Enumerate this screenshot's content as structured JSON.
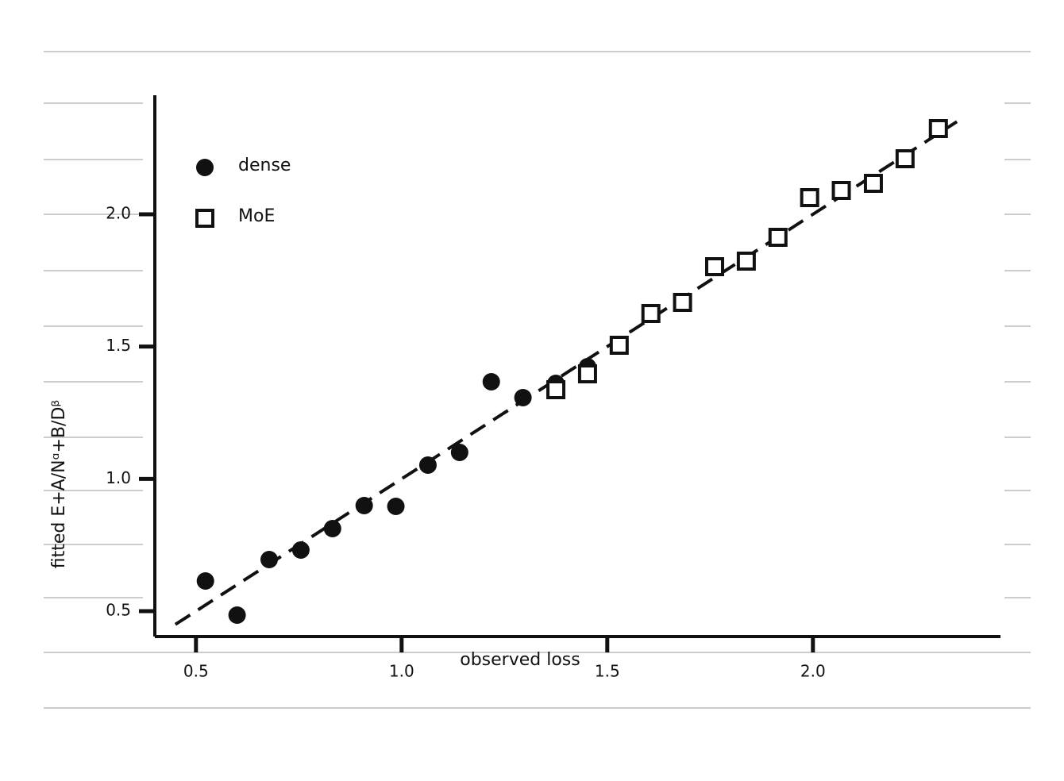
{
  "chart_data": {
    "type": "scatter",
    "xlabel": "observed loss",
    "ylabel": "fitted  E+A/Nᵅ+B/Dᵝ",
    "xlim": [
      0.4,
      2.456
    ],
    "ylim": [
      0.404,
      2.45
    ],
    "xticks": [
      0.5,
      {
        "value": 1.0,
        "label": "1.0"
      },
      1.5,
      {
        "value": 2.0,
        "label": "2.0"
      }
    ],
    "yticks": [
      0.5,
      {
        "value": 1.0,
        "label": "1.0"
      },
      1.5,
      {
        "value": 2.0,
        "label": "2.0"
      }
    ],
    "legend": "upper-left",
    "series": [
      {
        "name": "dense",
        "color": "#111111",
        "marker": "circle",
        "x": [
          0.523,
          0.6,
          0.678,
          0.755,
          0.832,
          0.909,
          0.986,
          1.064,
          1.141,
          1.218,
          1.295,
          1.375,
          1.452
        ],
        "y": [
          0.614,
          0.485,
          0.695,
          0.731,
          0.812,
          0.899,
          0.896,
          1.052,
          1.1,
          1.367,
          1.307,
          1.361,
          1.424
        ]
      },
      {
        "name": "MoE",
        "color": "#111111",
        "marker": "square",
        "x": [
          1.375,
          1.452,
          1.529,
          1.606,
          1.683,
          1.761,
          1.838,
          1.915,
          1.992,
          2.069,
          2.147,
          2.224,
          2.305
        ],
        "y": [
          1.337,
          1.397,
          1.505,
          1.625,
          1.667,
          1.802,
          1.823,
          1.913,
          2.063,
          2.09,
          2.117,
          2.21,
          2.324
        ]
      }
    ],
    "fit": {
      "color": "#111111",
      "x": [
        0.45,
        2.35
      ],
      "y": [
        0.45,
        2.35
      ]
    }
  }
}
